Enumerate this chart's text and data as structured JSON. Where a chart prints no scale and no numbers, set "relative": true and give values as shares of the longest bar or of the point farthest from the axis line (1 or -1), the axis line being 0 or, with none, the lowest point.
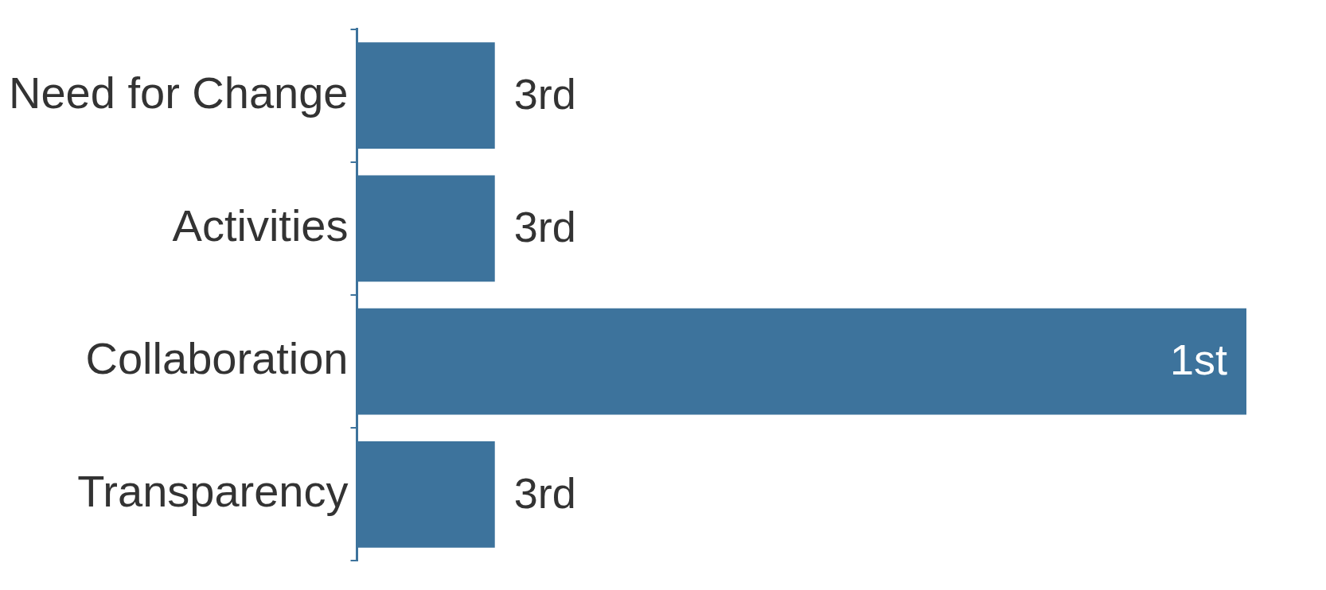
{
  "chart_data": {
    "type": "bar",
    "orientation": "horizontal",
    "relative": true,
    "categories": [
      "Need for Change",
      "Activities",
      "Collaboration",
      "Transparency"
    ],
    "values": [
      0.155,
      0.155,
      1,
      0.155
    ],
    "annotations": [
      "3rd",
      "3rd",
      "1st",
      "3rd"
    ],
    "color": "#3d739c"
  }
}
